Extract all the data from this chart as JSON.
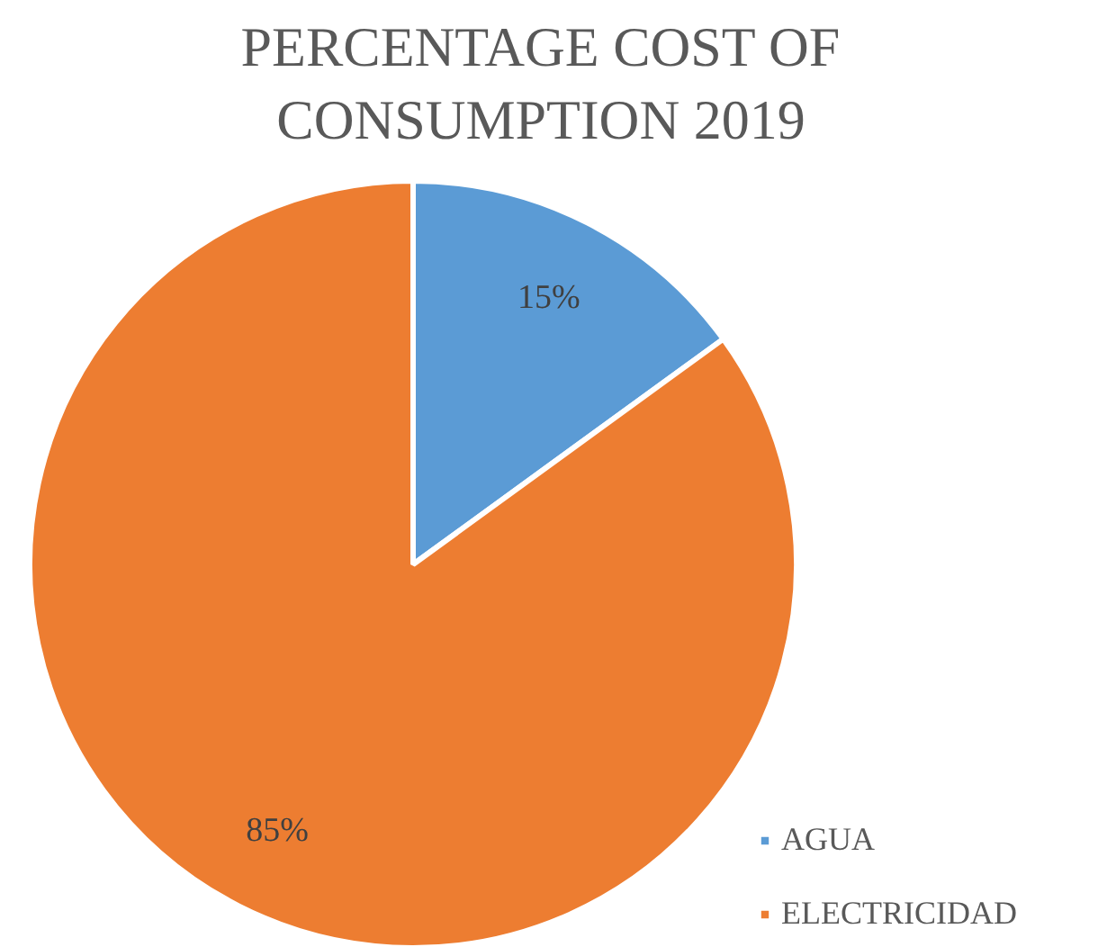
{
  "chart_data": {
    "type": "pie",
    "title": "PERCENTAGE COST OF CONSUMPTION 2019",
    "categories": [
      "AGUA",
      "ELECTRICIDAD"
    ],
    "values": [
      15,
      85
    ],
    "colors": [
      "#5b9bd5",
      "#ed7d31"
    ],
    "value_labels": [
      "15%",
      "85%"
    ],
    "legend": "bottom right"
  }
}
